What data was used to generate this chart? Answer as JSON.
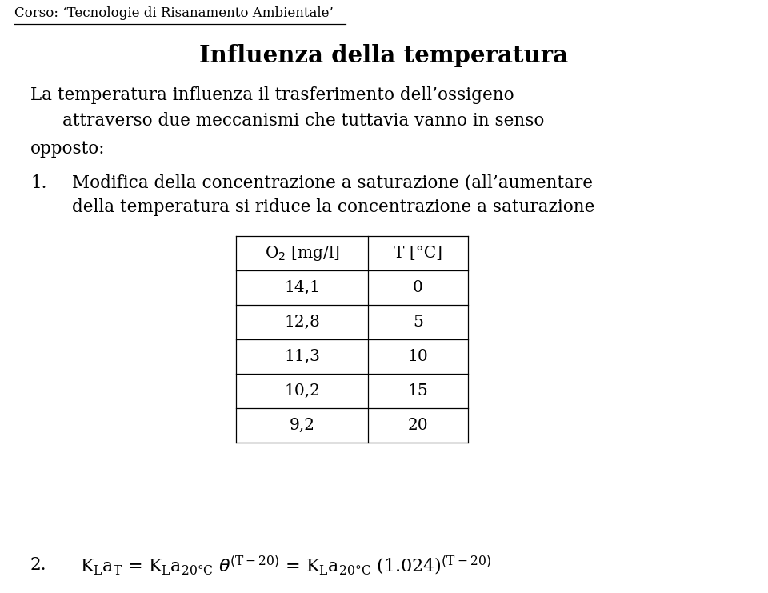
{
  "background_color": "#ffffff",
  "corso_text": "Corso: ‘Tecnologie di Risanamento Ambientale’",
  "title": "Influenza della temperatura",
  "body_line1": "La temperatura influenza il trasferimento dell’ossigeno",
  "body_line2": "attraverso due meccanismi che tuttavia vanno in senso",
  "body_line3": "opposto:",
  "item1_num": "1.",
  "item1_text1": "Modifica della concentrazione a saturazione (all’aumentare",
  "item1_text2": "della temperatura si riduce la concentrazione a saturazione",
  "table_headers": [
    "O₂ [mg/l]",
    "T [°C]"
  ],
  "table_data": [
    [
      "14,1",
      "0"
    ],
    [
      "12,8",
      "5"
    ],
    [
      "11,3",
      "10"
    ],
    [
      "10,2",
      "15"
    ],
    [
      "9,2",
      "20"
    ]
  ],
  "item2_num": "2.",
  "font_size_corso": 12,
  "font_size_title": 21,
  "font_size_body": 15.5,
  "font_size_table": 14.5,
  "font_size_formula": 16
}
